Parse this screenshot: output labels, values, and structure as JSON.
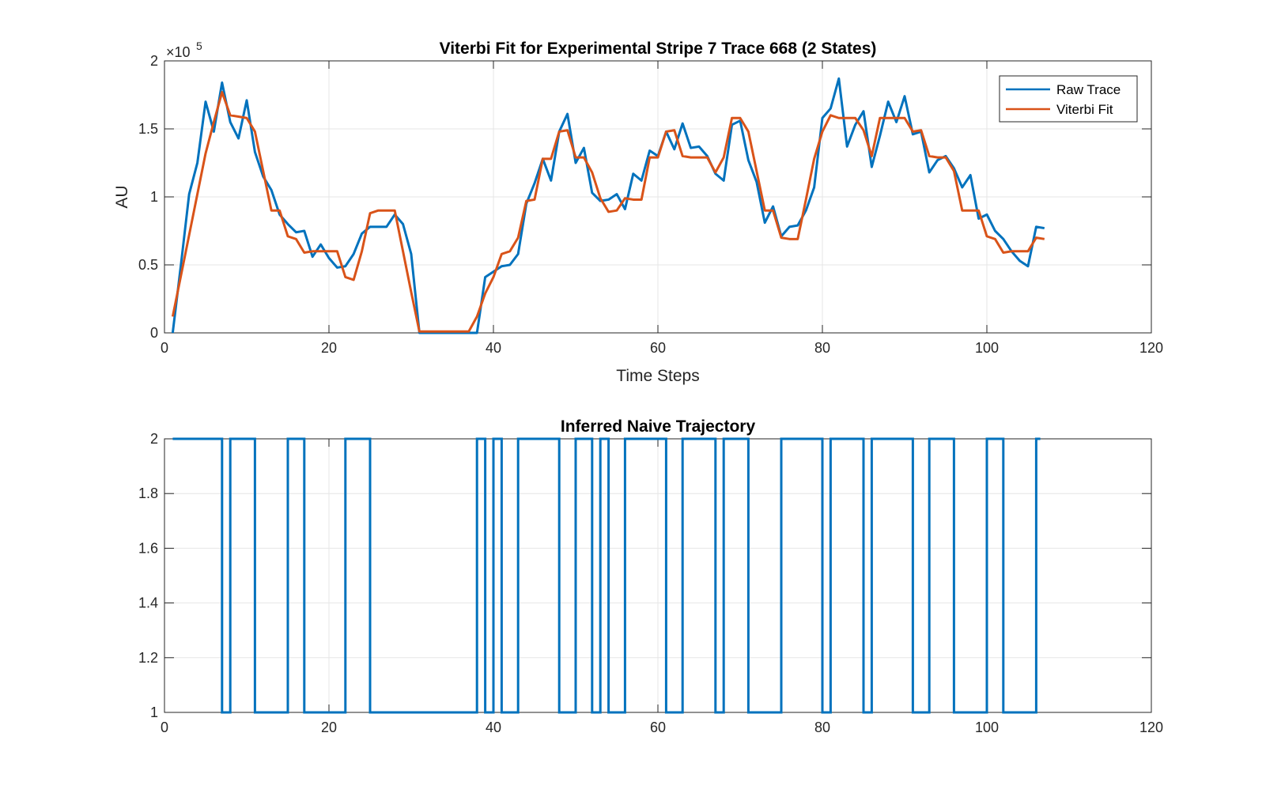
{
  "chart_data": [
    {
      "type": "line",
      "title": "Viterbi Fit for Experimental Stripe 7 Trace 668 (2 States)",
      "xlabel": "Time Steps",
      "ylabel": "AU",
      "y_exponent_base": "×10",
      "y_exponent_power": "5",
      "xlim": [
        0,
        120
      ],
      "ylim": [
        0,
        2
      ],
      "xticks": [
        0,
        20,
        40,
        60,
        80,
        100,
        120
      ],
      "yticks": [
        0,
        0.5,
        1,
        1.5,
        2
      ],
      "xtick_labels": [
        "0",
        "20",
        "40",
        "60",
        "80",
        "100",
        "120"
      ],
      "ytick_labels": [
        "0",
        "0.5",
        "1",
        "1.5",
        "2"
      ],
      "grid": true,
      "legend_position": "top-right",
      "x": [
        1,
        2,
        3,
        4,
        5,
        6,
        7,
        8,
        9,
        10,
        11,
        12,
        13,
        14,
        15,
        16,
        17,
        18,
        19,
        20,
        21,
        22,
        23,
        24,
        25,
        26,
        27,
        28,
        29,
        30,
        31,
        32,
        33,
        34,
        35,
        36,
        37,
        38,
        39,
        40,
        41,
        42,
        43,
        44,
        45,
        46,
        47,
        48,
        49,
        50,
        51,
        52,
        53,
        54,
        55,
        56,
        57,
        58,
        59,
        60,
        61,
        62,
        63,
        64,
        65,
        66,
        67,
        68,
        69,
        70,
        71,
        72,
        73,
        74,
        75,
        76,
        77,
        78,
        79,
        80,
        81,
        82,
        83,
        84,
        85,
        86,
        87,
        88,
        89,
        90,
        91,
        92,
        93,
        94,
        95,
        96,
        97,
        98,
        99,
        100,
        101,
        102,
        103,
        104,
        105,
        106,
        107
      ],
      "series": [
        {
          "name": "Raw Trace",
          "color": "#0072BD",
          "values": [
            0,
            0.5,
            1.02,
            1.25,
            1.7,
            1.48,
            1.84,
            1.55,
            1.43,
            1.71,
            1.33,
            1.15,
            1.05,
            0.87,
            0.8,
            0.74,
            0.75,
            0.56,
            0.65,
            0.55,
            0.48,
            0.49,
            0.58,
            0.73,
            0.78,
            0.78,
            0.78,
            0.87,
            0.8,
            0.58,
            0,
            0,
            0,
            0,
            0,
            0,
            0,
            0,
            0.41,
            0.45,
            0.49,
            0.5,
            0.58,
            0.95,
            1.1,
            1.28,
            1.12,
            1.48,
            1.61,
            1.25,
            1.36,
            1.03,
            0.97,
            0.98,
            1.02,
            0.91,
            1.17,
            1.12,
            1.34,
            1.3,
            1.48,
            1.35,
            1.54,
            1.36,
            1.37,
            1.3,
            1.17,
            1.12,
            1.53,
            1.56,
            1.27,
            1.11,
            0.81,
            0.93,
            0.71,
            0.78,
            0.79,
            0.9,
            1.07,
            1.58,
            1.65,
            1.87,
            1.37,
            1.53,
            1.63,
            1.22,
            1.45,
            1.7,
            1.55,
            1.74,
            1.46,
            1.48,
            1.18,
            1.27,
            1.3,
            1.21,
            1.07,
            1.16,
            0.84,
            0.87,
            0.75,
            0.69,
            0.6,
            0.53,
            0.49,
            0.78,
            0.77
          ]
        },
        {
          "name": "Viterbi Fit",
          "color": "#D95319",
          "values": [
            0.12,
            0.42,
            0.72,
            1.02,
            1.32,
            1.55,
            1.77,
            1.6,
            1.59,
            1.58,
            1.48,
            1.19,
            0.9,
            0.9,
            0.71,
            0.69,
            0.59,
            0.6,
            0.6,
            0.6,
            0.6,
            0.41,
            0.39,
            0.6,
            0.88,
            0.9,
            0.9,
            0.9,
            0.6,
            0.3,
            0.01,
            0.01,
            0.01,
            0.01,
            0.01,
            0.01,
            0.01,
            0.12,
            0.29,
            0.41,
            0.58,
            0.6,
            0.7,
            0.97,
            0.98,
            1.28,
            1.28,
            1.48,
            1.49,
            1.29,
            1.29,
            1.18,
            0.99,
            0.89,
            0.9,
            0.99,
            0.98,
            0.98,
            1.29,
            1.29,
            1.48,
            1.49,
            1.3,
            1.29,
            1.29,
            1.29,
            1.18,
            1.29,
            1.58,
            1.58,
            1.48,
            1.19,
            0.9,
            0.9,
            0.7,
            0.69,
            0.69,
            0.98,
            1.28,
            1.48,
            1.6,
            1.58,
            1.58,
            1.58,
            1.49,
            1.3,
            1.58,
            1.58,
            1.58,
            1.58,
            1.48,
            1.49,
            1.3,
            1.29,
            1.29,
            1.19,
            0.9,
            0.9,
            0.9,
            0.71,
            0.69,
            0.59,
            0.6,
            0.6,
            0.6,
            0.7,
            0.69
          ]
        }
      ]
    },
    {
      "type": "line",
      "title": "Inferred Naive Trajectory",
      "xlabel": "",
      "ylabel": "",
      "xlim": [
        0,
        120
      ],
      "ylim": [
        1,
        2
      ],
      "xticks": [
        0,
        20,
        40,
        60,
        80,
        100,
        120
      ],
      "yticks": [
        1,
        1.2,
        1.4,
        1.6,
        1.8,
        2
      ],
      "xtick_labels": [
        "0",
        "20",
        "40",
        "60",
        "80",
        "100",
        "120"
      ],
      "ytick_labels": [
        "1",
        "1.2",
        "1.4",
        "1.6",
        "1.8",
        "2"
      ],
      "grid": true,
      "step": true,
      "series": [
        {
          "color": "#0072BD",
          "segments": [
            [
              1,
              7,
              2
            ],
            [
              7,
              8,
              1
            ],
            [
              8,
              11,
              2
            ],
            [
              11,
              15,
              1
            ],
            [
              15,
              17,
              2
            ],
            [
              17,
              22,
              1
            ],
            [
              22,
              25,
              2
            ],
            [
              25,
              38,
              1
            ],
            [
              38,
              39,
              2
            ],
            [
              39,
              40,
              1
            ],
            [
              40,
              41,
              2
            ],
            [
              41,
              43,
              1
            ],
            [
              43,
              48,
              2
            ],
            [
              48,
              50,
              1
            ],
            [
              50,
              52,
              2
            ],
            [
              52,
              53,
              1
            ],
            [
              53,
              54,
              2
            ],
            [
              54,
              56,
              1
            ],
            [
              56,
              61,
              2
            ],
            [
              61,
              63,
              1
            ],
            [
              63,
              67,
              2
            ],
            [
              67,
              68,
              1
            ],
            [
              68,
              71,
              2
            ],
            [
              71,
              75,
              1
            ],
            [
              75,
              80,
              2
            ],
            [
              80,
              81,
              1
            ],
            [
              81,
              85,
              2
            ],
            [
              85,
              86,
              1
            ],
            [
              86,
              91,
              2
            ],
            [
              91,
              93,
              1
            ],
            [
              93,
              96,
              2
            ],
            [
              96,
              100,
              1
            ],
            [
              100,
              102,
              2
            ],
            [
              102,
              106,
              1
            ],
            [
              106,
              106.5,
              2
            ]
          ]
        }
      ]
    }
  ]
}
